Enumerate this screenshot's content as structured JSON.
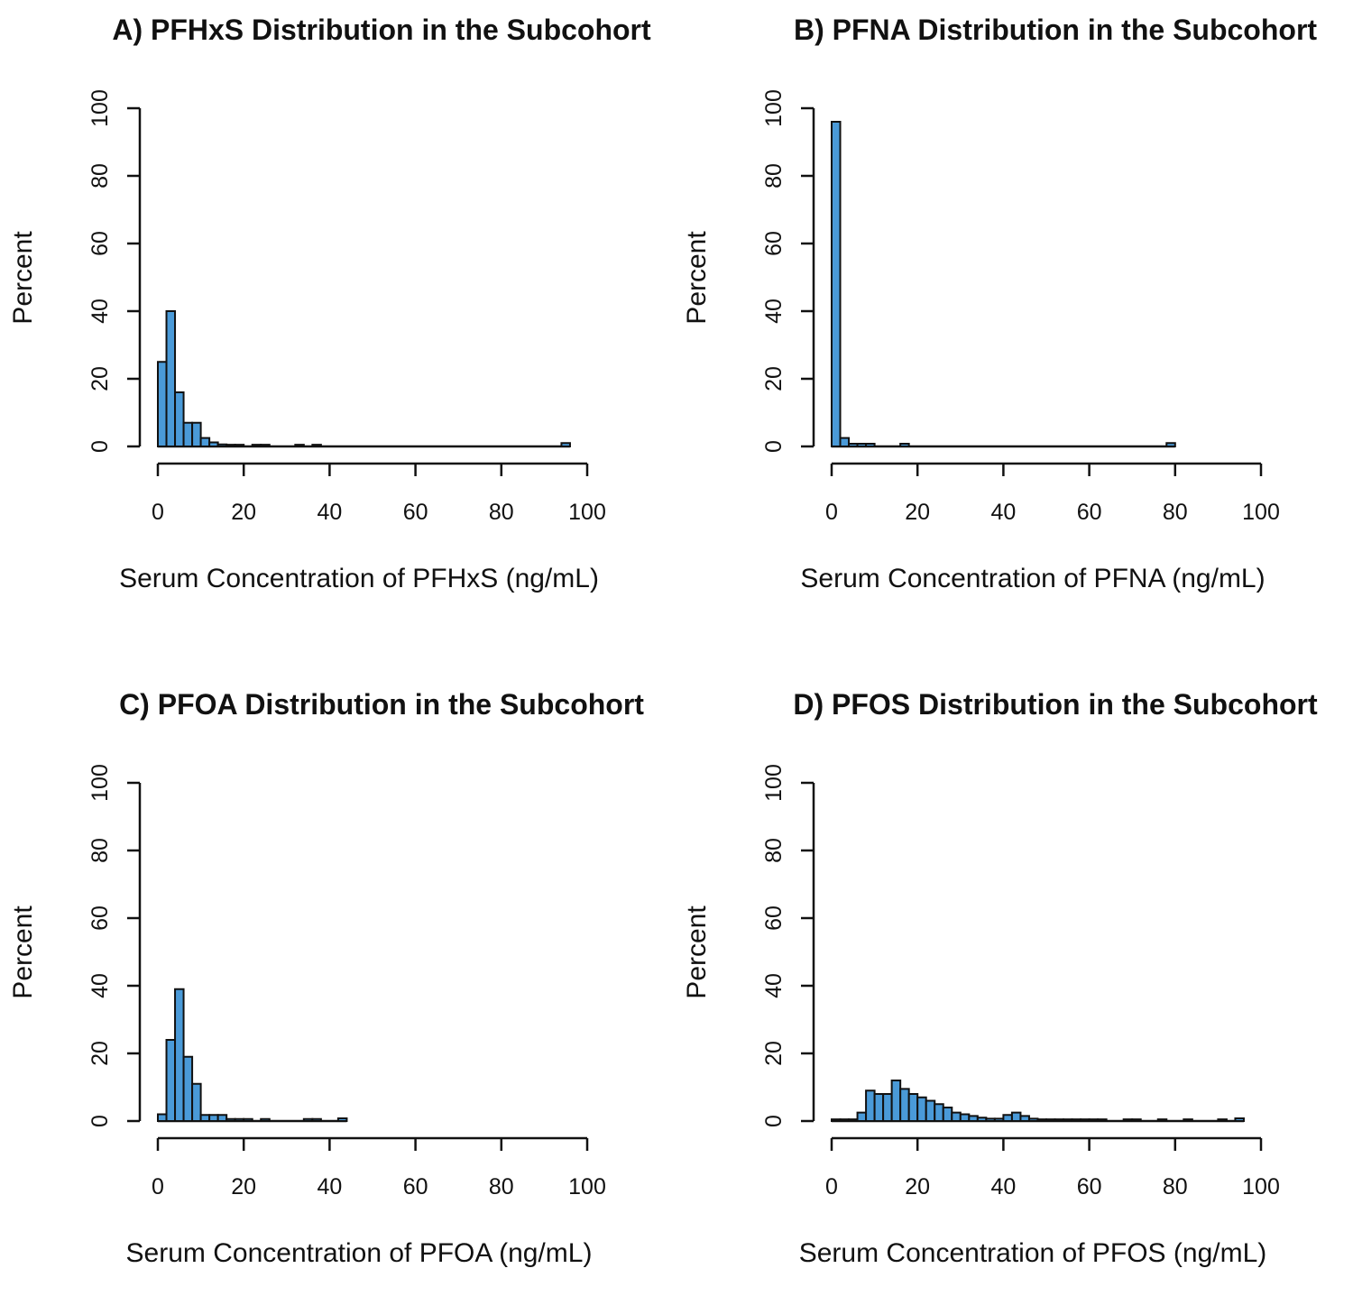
{
  "figure": {
    "bar_color": "#4a9ad8",
    "bar_stroke": "#111111"
  },
  "chart_data": [
    {
      "id": "A",
      "type": "bar",
      "subtype": "histogram",
      "title": "A) PFHxS Distribution in the Subcohort",
      "xlabel": "Serum Concentration of PFHxS (ng/mL)",
      "ylabel": "Percent",
      "xlim": [
        0,
        100
      ],
      "ylim": [
        0,
        100
      ],
      "x_ticks": [
        "0",
        "20",
        "40",
        "60",
        "80",
        "100"
      ],
      "y_ticks": [
        "0",
        "20",
        "40",
        "60",
        "80",
        "100"
      ],
      "bin_width": 2,
      "bins": [
        {
          "x0": 0,
          "value": 25
        },
        {
          "x0": 2,
          "value": 40
        },
        {
          "x0": 4,
          "value": 16
        },
        {
          "x0": 6,
          "value": 7
        },
        {
          "x0": 8,
          "value": 7
        },
        {
          "x0": 10,
          "value": 2.5
        },
        {
          "x0": 12,
          "value": 1.2
        },
        {
          "x0": 14,
          "value": 0.6
        },
        {
          "x0": 16,
          "value": 0.5
        },
        {
          "x0": 18,
          "value": 0.5
        },
        {
          "x0": 22,
          "value": 0.5
        },
        {
          "x0": 24,
          "value": 0.5
        },
        {
          "x0": 32,
          "value": 0.5
        },
        {
          "x0": 36,
          "value": 0.5
        },
        {
          "x0": 94,
          "value": 1
        }
      ]
    },
    {
      "id": "B",
      "type": "bar",
      "subtype": "histogram",
      "title": "B) PFNA Distribution in the Subcohort",
      "xlabel": "Serum Concentration of PFNA (ng/mL)",
      "ylabel": "Percent",
      "xlim": [
        0,
        100
      ],
      "ylim": [
        0,
        100
      ],
      "x_ticks": [
        "0",
        "20",
        "40",
        "60",
        "80",
        "100"
      ],
      "y_ticks": [
        "0",
        "20",
        "40",
        "60",
        "80",
        "100"
      ],
      "bin_width": 2,
      "bins": [
        {
          "x0": 0,
          "value": 96
        },
        {
          "x0": 2,
          "value": 2.5
        },
        {
          "x0": 4,
          "value": 0.8
        },
        {
          "x0": 6,
          "value": 0.8
        },
        {
          "x0": 8,
          "value": 0.8
        },
        {
          "x0": 16,
          "value": 0.8
        },
        {
          "x0": 78,
          "value": 1
        }
      ]
    },
    {
      "id": "C",
      "type": "bar",
      "subtype": "histogram",
      "title": "C) PFOA Distribution in the Subcohort",
      "xlabel": "Serum Concentration of PFOA (ng/mL)",
      "ylabel": "Percent",
      "xlim": [
        0,
        100
      ],
      "ylim": [
        0,
        100
      ],
      "x_ticks": [
        "0",
        "20",
        "40",
        "60",
        "80",
        "100"
      ],
      "y_ticks": [
        "0",
        "20",
        "40",
        "60",
        "80",
        "100"
      ],
      "bin_width": 2,
      "bins": [
        {
          "x0": 0,
          "value": 2
        },
        {
          "x0": 2,
          "value": 24
        },
        {
          "x0": 4,
          "value": 39
        },
        {
          "x0": 6,
          "value": 19
        },
        {
          "x0": 8,
          "value": 11
        },
        {
          "x0": 10,
          "value": 1.8
        },
        {
          "x0": 12,
          "value": 1.8
        },
        {
          "x0": 14,
          "value": 1.8
        },
        {
          "x0": 16,
          "value": 0.6
        },
        {
          "x0": 18,
          "value": 0.6
        },
        {
          "x0": 20,
          "value": 0.6
        },
        {
          "x0": 24,
          "value": 0.6
        },
        {
          "x0": 34,
          "value": 0.6
        },
        {
          "x0": 36,
          "value": 0.6
        },
        {
          "x0": 42,
          "value": 0.8
        }
      ]
    },
    {
      "id": "D",
      "type": "bar",
      "subtype": "histogram",
      "title": "D) PFOS Distribution in the Subcohort",
      "xlabel": "Serum Concentration of PFOS (ng/mL)",
      "ylabel": "Percent",
      "xlim": [
        0,
        100
      ],
      "ylim": [
        0,
        100
      ],
      "x_ticks": [
        "0",
        "20",
        "40",
        "60",
        "80",
        "100"
      ],
      "y_ticks": [
        "0",
        "20",
        "40",
        "60",
        "80",
        "100"
      ],
      "bin_width": 2,
      "bins": [
        {
          "x0": 0,
          "value": 0.5
        },
        {
          "x0": 2,
          "value": 0.5
        },
        {
          "x0": 4,
          "value": 0.5
        },
        {
          "x0": 6,
          "value": 2.5
        },
        {
          "x0": 8,
          "value": 9
        },
        {
          "x0": 10,
          "value": 8
        },
        {
          "x0": 12,
          "value": 8
        },
        {
          "x0": 14,
          "value": 12
        },
        {
          "x0": 16,
          "value": 9.5
        },
        {
          "x0": 18,
          "value": 8
        },
        {
          "x0": 20,
          "value": 7
        },
        {
          "x0": 22,
          "value": 6
        },
        {
          "x0": 24,
          "value": 5
        },
        {
          "x0": 26,
          "value": 4
        },
        {
          "x0": 28,
          "value": 2.5
        },
        {
          "x0": 30,
          "value": 2
        },
        {
          "x0": 32,
          "value": 1.5
        },
        {
          "x0": 34,
          "value": 1
        },
        {
          "x0": 36,
          "value": 0.7
        },
        {
          "x0": 38,
          "value": 0.7
        },
        {
          "x0": 40,
          "value": 1.8
        },
        {
          "x0": 42,
          "value": 2.5
        },
        {
          "x0": 44,
          "value": 1.5
        },
        {
          "x0": 46,
          "value": 0.7
        },
        {
          "x0": 48,
          "value": 0.5
        },
        {
          "x0": 50,
          "value": 0.5
        },
        {
          "x0": 52,
          "value": 0.5
        },
        {
          "x0": 54,
          "value": 0.5
        },
        {
          "x0": 56,
          "value": 0.5
        },
        {
          "x0": 58,
          "value": 0.5
        },
        {
          "x0": 60,
          "value": 0.5
        },
        {
          "x0": 62,
          "value": 0.5
        },
        {
          "x0": 68,
          "value": 0.5
        },
        {
          "x0": 70,
          "value": 0.5
        },
        {
          "x0": 76,
          "value": 0.5
        },
        {
          "x0": 82,
          "value": 0.5
        },
        {
          "x0": 90,
          "value": 0.5
        },
        {
          "x0": 94,
          "value": 0.8
        }
      ]
    }
  ]
}
